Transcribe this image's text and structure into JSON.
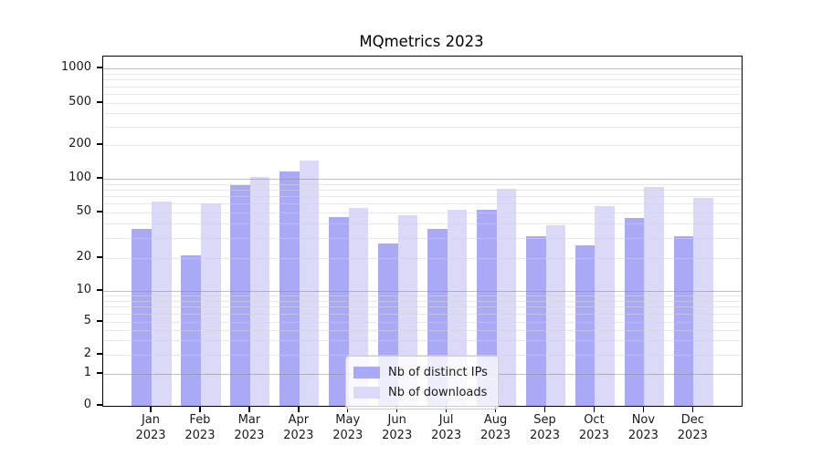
{
  "chart_data": {
    "type": "bar",
    "title": "MQmetrics 2023",
    "categories": [
      "Jan",
      "Feb",
      "Mar",
      "Apr",
      "May",
      "Jun",
      "Jul",
      "Aug",
      "Sep",
      "Oct",
      "Nov",
      "Dec"
    ],
    "x_tick_second_line": "2023",
    "series": [
      {
        "name": "Nb of distinct IPs",
        "color": "#a9a9f5",
        "values": [
          36,
          21,
          88,
          117,
          46,
          27,
          36,
          53,
          31,
          26,
          45,
          31
        ]
      },
      {
        "name": "Nb of downloads",
        "color": "#dadaf8",
        "values": [
          63,
          60,
          103,
          146,
          55,
          47,
          53,
          82,
          39,
          57,
          84,
          68
        ]
      }
    ],
    "yscale": "symlog",
    "y_ticks": [
      1000,
      500,
      200,
      100,
      50,
      20,
      10,
      5,
      2,
      1,
      0
    ],
    "ylim": [
      0,
      1250
    ],
    "grid": "both",
    "legend_position": "lower center",
    "colors": {
      "major_grid": "#c9c9c9",
      "minor_grid": "#ececec",
      "axis": "#000000",
      "text": "#1a1a1a"
    }
  }
}
